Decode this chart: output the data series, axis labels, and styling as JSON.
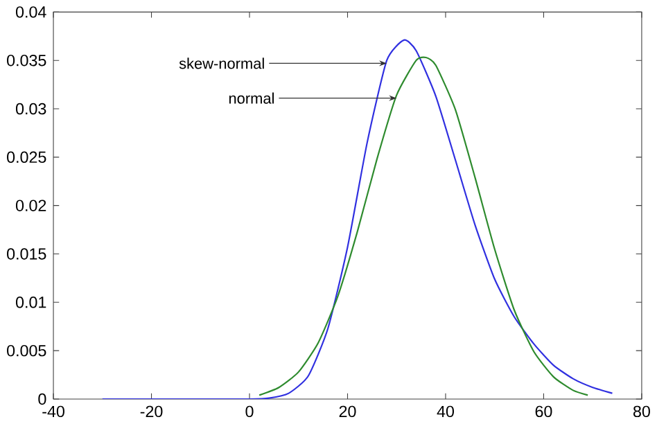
{
  "chart_data": {
    "type": "line",
    "xlim": [
      -40,
      80
    ],
    "ylim": [
      0,
      0.04
    ],
    "xticks": [
      -40,
      -20,
      0,
      20,
      40,
      60,
      80
    ],
    "yticks": [
      0,
      0.005,
      0.01,
      0.015,
      0.02,
      0.025,
      0.03,
      0.035,
      0.04
    ],
    "marker": "none",
    "line_style": "solid",
    "series": [
      {
        "color": "#3030e0",
        "x": [
          -30,
          -10,
          0,
          4,
          8,
          12,
          16,
          20,
          24,
          28,
          31.5,
          34,
          38,
          42,
          46,
          50,
          54,
          58,
          62,
          66,
          70,
          74
        ],
        "values": [
          0,
          0,
          0,
          0.0001,
          0.0006,
          0.0024,
          0.0073,
          0.0157,
          0.0265,
          0.035,
          0.0371,
          0.036,
          0.0313,
          0.0247,
          0.018,
          0.0124,
          0.0085,
          0.0057,
          0.0035,
          0.0021,
          0.0012,
          0.0006
        ]
      },
      {
        "color": "#2e8b2e",
        "x": [
          2,
          6,
          10,
          14,
          18,
          22,
          26,
          30,
          34,
          36,
          38,
          42,
          46,
          50,
          54,
          58,
          62,
          66,
          69
        ],
        "values": [
          0.0004,
          0.0012,
          0.0028,
          0.0058,
          0.0106,
          0.0173,
          0.0248,
          0.0314,
          0.035,
          0.0353,
          0.0345,
          0.0299,
          0.0229,
          0.0155,
          0.0092,
          0.0049,
          0.0023,
          0.0009,
          0.0004
        ]
      }
    ],
    "annotations": [
      {
        "text": "skew-normal",
        "x": 28,
        "y": 0.0347
      },
      {
        "text": "normal",
        "x": 30,
        "y": 0.0311
      }
    ]
  }
}
